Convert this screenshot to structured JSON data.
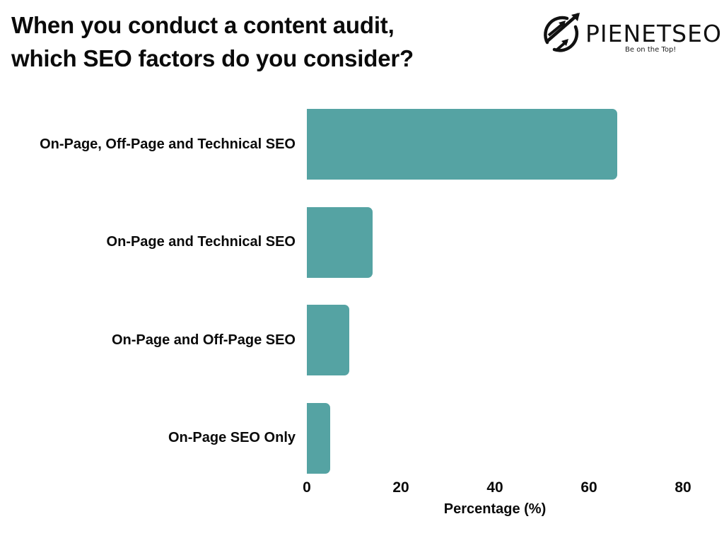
{
  "title_lines": [
    "When you conduct a content audit,",
    "which SEO factors do you consider?"
  ],
  "logo": {
    "name": "PIENETSEO",
    "tagline": "Be on the Top!",
    "icon": "upward-arrows-circle-icon"
  },
  "colors": {
    "bar": "#55a3a3",
    "text": "#0a0a0a"
  },
  "chart_data": {
    "type": "bar",
    "orientation": "horizontal",
    "title": "When you conduct a content audit, which SEO factors do you consider?",
    "categories": [
      "On-Page, Off-Page and Technical SEO",
      "On-Page and Technical SEO",
      "On-Page and Off-Page SEO",
      "On-Page SEO Only"
    ],
    "values": [
      66,
      14,
      9,
      5
    ],
    "xlabel": "Percentage (%)",
    "ylabel": "",
    "xlim": [
      0,
      80
    ],
    "xticks": [
      "0",
      "20",
      "40",
      "60",
      "80"
    ],
    "grid": false,
    "legend": null
  }
}
